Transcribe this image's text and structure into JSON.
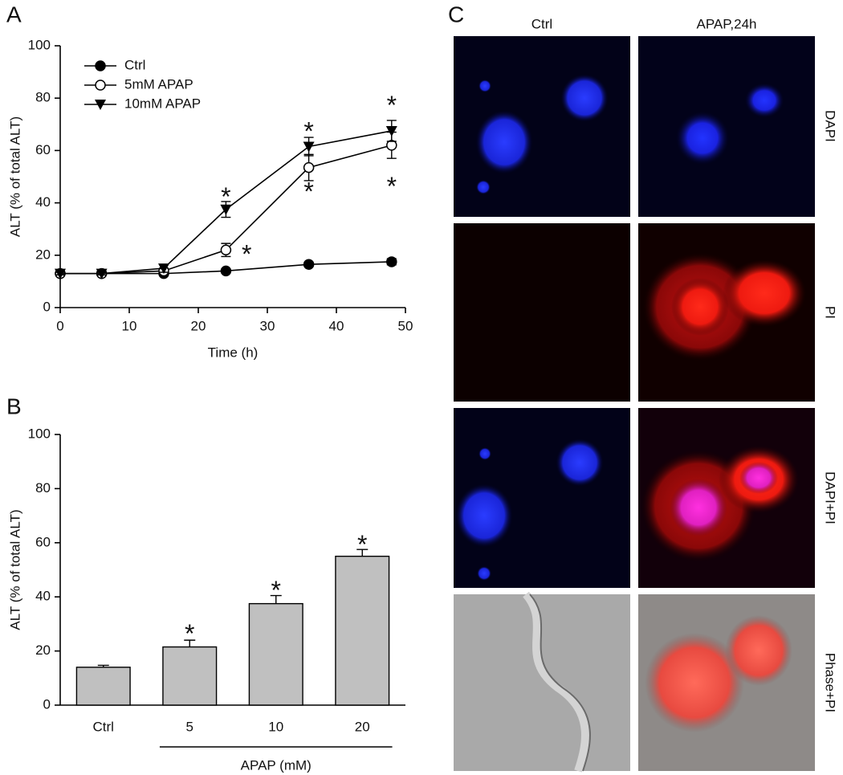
{
  "chart_data": [
    {
      "type": "line",
      "panel": "A",
      "xlabel": "Time (h)",
      "ylabel": "ALT (% of total ALT)",
      "x": [
        0,
        6,
        15,
        24,
        36,
        48
      ],
      "series": [
        {
          "name": "Ctrl",
          "color": "#000000",
          "marker": "circle",
          "values": [
            13,
            13,
            13,
            14,
            16.5,
            17.5
          ],
          "errors": [
            0.5,
            0.5,
            0.5,
            0.8,
            0.8,
            1.2
          ]
        },
        {
          "name": "5mM APAP",
          "color": "#000000",
          "marker": "open-circle",
          "values": [
            13,
            13,
            14,
            22,
            53.5,
            62
          ],
          "errors": [
            0.5,
            0.5,
            1,
            2.5,
            5,
            5
          ]
        },
        {
          "name": "10mM APAP",
          "color": "#000000",
          "marker": "triangle-down",
          "values": [
            13,
            13,
            15,
            37.5,
            61.5,
            67.5
          ],
          "errors": [
            0.5,
            0.5,
            1.5,
            3,
            3.5,
            4
          ]
        }
      ],
      "annotations": [
        {
          "text": "*",
          "x": 24,
          "y": 44
        },
        {
          "text": "*",
          "x": 27,
          "y": 22
        },
        {
          "text": "*",
          "x": 36,
          "y": 69
        },
        {
          "text": "*",
          "x": 36,
          "y": 46
        },
        {
          "text": "*",
          "x": 48,
          "y": 79
        },
        {
          "text": "*",
          "x": 48,
          "y": 48
        }
      ],
      "xlim": [
        0,
        50
      ],
      "xticks": [
        0,
        10,
        20,
        30,
        40,
        50
      ],
      "ylim": [
        0,
        100
      ],
      "yticks": [
        0,
        20,
        40,
        60,
        80,
        100
      ],
      "legend": "upper left"
    },
    {
      "type": "bar",
      "panel": "B",
      "xlabel": "APAP (mM)",
      "ylabel": "ALT (% of total ALT)",
      "categories": [
        "Ctrl",
        "5",
        "10",
        "20"
      ],
      "values": [
        14,
        21.5,
        37.5,
        55
      ],
      "errors": [
        0.7,
        2.5,
        3,
        2.5
      ],
      "color": "#c0c0c0",
      "annotations": [
        {
          "text": "*",
          "x": "5",
          "y": 28
        },
        {
          "text": "*",
          "x": "10",
          "y": 44
        },
        {
          "text": "*",
          "x": "20",
          "y": 61
        }
      ],
      "ylim": [
        0,
        100
      ],
      "yticks": [
        0,
        20,
        40,
        60,
        80,
        100
      ]
    }
  ],
  "micrographs": {
    "panel": "C",
    "columns": [
      "Ctrl",
      "APAP,24h"
    ],
    "rows": [
      "DAPI",
      "PI",
      "DAPI+PI",
      "Phase+PI"
    ]
  }
}
